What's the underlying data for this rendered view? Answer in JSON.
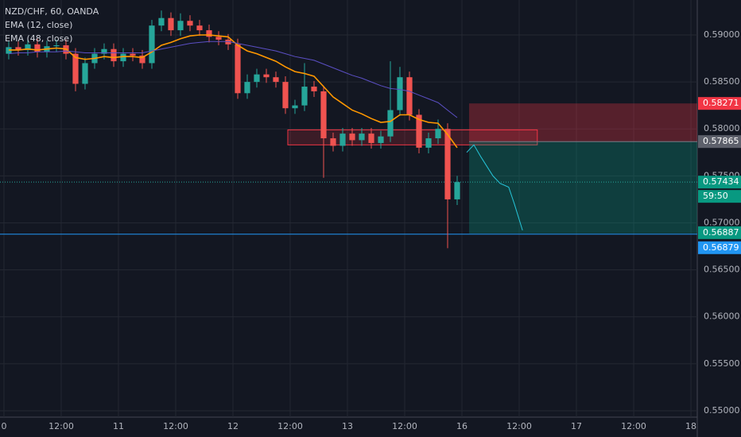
{
  "chart_data": {
    "type": "candlestick",
    "legend": [
      "NZD/CHF, 60, OANDA",
      "EMA (12, close)",
      "EMA (48, close)"
    ],
    "up_color": "#26a69a",
    "down_color": "#ef5350",
    "grid": true,
    "xlim": [
      -0.83,
      145.33
    ],
    "xticks": [
      {
        "value": 0,
        "label": "0"
      },
      {
        "value": 12,
        "label": "12:00"
      },
      {
        "value": 24,
        "label": "11"
      },
      {
        "value": 36,
        "label": "12:00"
      },
      {
        "value": 48,
        "label": "12"
      },
      {
        "value": 60,
        "label": "12:00"
      },
      {
        "value": 72,
        "label": "13"
      },
      {
        "value": 84,
        "label": "12:00"
      },
      {
        "value": 96,
        "label": "16"
      },
      {
        "value": 108,
        "label": "12:00"
      },
      {
        "value": 120,
        "label": "17"
      },
      {
        "value": 132,
        "label": "12:00"
      },
      {
        "value": 144,
        "label": "18"
      }
    ],
    "ylim": [
      0.54932,
      0.59372
    ],
    "yticks": [
      {
        "value": 0.59,
        "label": "0.59000"
      },
      {
        "value": 0.585,
        "label": "0.58500"
      },
      {
        "value": 0.58,
        "label": "0.58000"
      },
      {
        "value": 0.575,
        "label": "0.57500"
      },
      {
        "value": 0.57,
        "label": "0.57000"
      },
      {
        "value": 0.565,
        "label": "0.56500"
      },
      {
        "value": 0.56,
        "label": "0.56000"
      },
      {
        "value": 0.555,
        "label": "0.55500"
      },
      {
        "value": 0.55,
        "label": "0.55000"
      }
    ],
    "x": [
      1,
      3,
      5,
      7,
      9,
      11,
      13,
      15,
      17,
      19,
      21,
      23,
      25,
      27,
      29,
      31,
      33,
      35,
      37,
      39,
      41,
      43,
      45,
      47,
      49,
      51,
      53,
      55,
      57,
      59,
      61,
      63,
      65,
      67,
      69,
      71,
      73,
      75,
      77,
      79,
      81,
      83,
      85,
      87,
      89,
      91,
      93,
      95
    ],
    "open": [
      0.588,
      0.5887,
      0.5884,
      0.589,
      0.5882,
      0.5888,
      0.5889,
      0.588,
      0.5848,
      0.587,
      0.588,
      0.5885,
      0.5872,
      0.588,
      0.5878,
      0.587,
      0.591,
      0.5918,
      0.5905,
      0.5915,
      0.591,
      0.5905,
      0.5898,
      0.5895,
      0.589,
      0.5838,
      0.585,
      0.5858,
      0.5855,
      0.585,
      0.5822,
      0.5825,
      0.5845,
      0.584,
      0.579,
      0.5782,
      0.5795,
      0.5788,
      0.5795,
      0.5785,
      0.5792,
      0.582,
      0.5855,
      0.5815,
      0.578,
      0.579,
      0.58,
      0.5725
    ],
    "high": [
      0.5893,
      0.5893,
      0.5896,
      0.5896,
      0.5894,
      0.5895,
      0.5895,
      0.5886,
      0.5876,
      0.5886,
      0.5891,
      0.5891,
      0.5886,
      0.5886,
      0.5884,
      0.5916,
      0.5926,
      0.5924,
      0.5923,
      0.5921,
      0.5916,
      0.5911,
      0.5904,
      0.5901,
      0.5896,
      0.5858,
      0.5864,
      0.5864,
      0.5861,
      0.5856,
      0.5831,
      0.587,
      0.5851,
      0.5846,
      0.5796,
      0.5801,
      0.5801,
      0.5801,
      0.5801,
      0.5798,
      0.5872,
      0.5866,
      0.5861,
      0.5821,
      0.5796,
      0.581,
      0.5806,
      0.575
    ],
    "low": [
      0.5874,
      0.5878,
      0.5878,
      0.5876,
      0.5876,
      0.5882,
      0.5874,
      0.584,
      0.5842,
      0.5864,
      0.5874,
      0.5866,
      0.5866,
      0.5872,
      0.5864,
      0.5864,
      0.5904,
      0.5899,
      0.5899,
      0.5904,
      0.5899,
      0.5892,
      0.5889,
      0.5884,
      0.5832,
      0.5832,
      0.5844,
      0.5849,
      0.5844,
      0.5816,
      0.5816,
      0.5819,
      0.5834,
      0.5748,
      0.5776,
      0.5776,
      0.5782,
      0.5782,
      0.5779,
      0.5779,
      0.5786,
      0.5814,
      0.5809,
      0.5774,
      0.5774,
      0.5784,
      0.5673,
      0.5719
    ],
    "close": [
      0.5887,
      0.5884,
      0.589,
      0.5882,
      0.5888,
      0.5889,
      0.588,
      0.5848,
      0.587,
      0.588,
      0.5885,
      0.5872,
      0.588,
      0.5878,
      0.587,
      0.591,
      0.5918,
      0.5905,
      0.5915,
      0.591,
      0.5905,
      0.5898,
      0.5895,
      0.589,
      0.5838,
      0.585,
      0.5858,
      0.5855,
      0.585,
      0.5822,
      0.5825,
      0.5845,
      0.584,
      0.579,
      0.5782,
      0.5795,
      0.5788,
      0.5795,
      0.5785,
      0.5792,
      0.582,
      0.5855,
      0.5815,
      0.578,
      0.579,
      0.58,
      0.5725,
      0.57434
    ],
    "series": [
      {
        "color": "#ff9800",
        "values": [
          0.5884,
          0.5884,
          0.5885,
          0.5884,
          0.5885,
          0.5886,
          0.5885,
          0.5876,
          0.5874,
          0.5875,
          0.5877,
          0.5876,
          0.5877,
          0.5877,
          0.5876,
          0.5882,
          0.5889,
          0.5892,
          0.5896,
          0.5899,
          0.59,
          0.59,
          0.5899,
          0.5898,
          0.5889,
          0.5883,
          0.588,
          0.5876,
          0.5872,
          0.5866,
          0.5861,
          0.5859,
          0.5856,
          0.5845,
          0.5834,
          0.5827,
          0.582,
          0.5816,
          0.5811,
          0.5807,
          0.5808,
          0.5815,
          0.5815,
          0.581,
          0.5807,
          0.5806,
          0.5794,
          0.578
        ]
      },
      {
        "color": "#5b4fc4",
        "values": [
          0.588,
          0.5881,
          0.5881,
          0.5882,
          0.5882,
          0.5882,
          0.5883,
          0.5882,
          0.5881,
          0.5881,
          0.5881,
          0.5881,
          0.5881,
          0.5881,
          0.5881,
          0.5883,
          0.5885,
          0.5887,
          0.5889,
          0.5891,
          0.5892,
          0.5893,
          0.5893,
          0.5893,
          0.5891,
          0.5889,
          0.5887,
          0.5885,
          0.5883,
          0.588,
          0.5877,
          0.5875,
          0.5873,
          0.5869,
          0.5865,
          0.5861,
          0.5857,
          0.5854,
          0.585,
          0.5846,
          0.5843,
          0.5842,
          0.584,
          0.5836,
          0.5832,
          0.5828,
          0.582,
          0.5812
        ]
      }
    ],
    "projection": {
      "color": "#26c6da",
      "x": [
        97,
        98.5,
        100,
        102.5,
        104,
        105.8,
        107,
        108.7
      ],
      "values": [
        0.5775,
        0.5783,
        0.577,
        0.575,
        0.5742,
        0.5738,
        0.572,
        0.5692
      ]
    },
    "zone": {
      "x": [
        59.5,
        111.8
      ],
      "values": [
        0.5799,
        0.5783
      ],
      "color": "#f23645"
    },
    "position": {
      "x_start": 97.5,
      "stop": 0.58271,
      "entry": 0.57865,
      "target": 0.56887
    },
    "hline": {
      "value": 0.56879,
      "color": "#2196f3"
    },
    "last_price": 0.57434,
    "countdown": "59:50"
  }
}
